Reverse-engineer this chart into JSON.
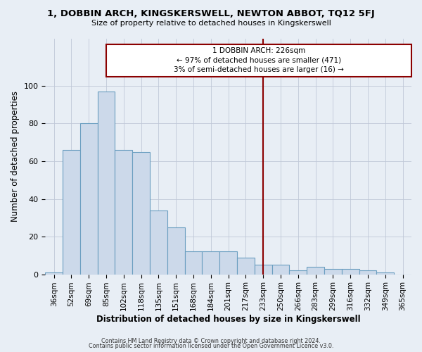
{
  "title": "1, DOBBIN ARCH, KINGSKERSWELL, NEWTON ABBOT, TQ12 5FJ",
  "subtitle": "Size of property relative to detached houses in Kingskerswell",
  "xlabel": "Distribution of detached houses by size in Kingskerswell",
  "ylabel": "Number of detached properties",
  "categories": [
    "36sqm",
    "52sqm",
    "69sqm",
    "85sqm",
    "102sqm",
    "118sqm",
    "135sqm",
    "151sqm",
    "168sqm",
    "184sqm",
    "201sqm",
    "217sqm",
    "233sqm",
    "250sqm",
    "266sqm",
    "283sqm",
    "299sqm",
    "316sqm",
    "332sqm",
    "349sqm",
    "365sqm"
  ],
  "values": [
    1,
    66,
    80,
    97,
    66,
    65,
    34,
    25,
    12,
    12,
    12,
    9,
    5,
    5,
    2,
    4,
    3,
    3,
    2,
    1,
    0
  ],
  "bar_color": "#ccd9ea",
  "bar_edge_color": "#6a9ec0",
  "property_line_x": 12.0,
  "annotation_line_color": "#8b0000",
  "background_color": "#e8eef5",
  "footer_line1": "Contains HM Land Registry data © Crown copyright and database right 2024.",
  "footer_line2": "Contains public sector information licensed under the Open Government Licence v3.0.",
  "ylim": [
    0,
    125
  ],
  "yticks": [
    0,
    20,
    40,
    60,
    80,
    100
  ],
  "ann_text_line1": "1 DOBBIN ARCH: 226sqm",
  "ann_text_line2": "← 97% of detached houses are smaller (471)",
  "ann_text_line3": "3% of semi-detached houses are larger (16) →"
}
